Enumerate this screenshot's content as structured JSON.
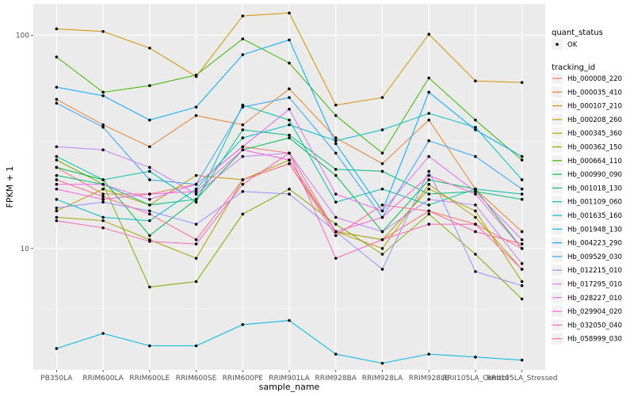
{
  "chart_data": {
    "type": "line",
    "xlabel": "sample_name",
    "ylabel": "FPKM + 1",
    "y_scale": "log",
    "ylim": [
      2.7,
      140
    ],
    "y_ticks": [
      10,
      100
    ],
    "grid": true,
    "legend_placement": "right",
    "categories": [
      "PB350LA",
      "RRIM600LA",
      "RRIM600LE",
      "RRIM600SE",
      "RRIM600PE",
      "RRIM901LA",
      "RRIM928BA",
      "RRIM928LA",
      "RRIM928LE",
      "RRII105LA_Control",
      "RRII105LA_Stressed"
    ],
    "point_legend": {
      "title": "quant_status",
      "items": [
        "OK"
      ]
    },
    "legend_title": "tracking_id",
    "series": [
      {
        "name": "Hb_000008_220",
        "color": "#F8766D",
        "values": [
          24,
          18,
          18,
          20,
          30,
          28,
          12,
          11,
          15,
          13,
          10
        ]
      },
      {
        "name": "Hb_000035_410",
        "color": "#EA8331",
        "values": [
          50,
          38,
          30,
          42,
          38,
          56,
          33,
          25,
          40,
          19,
          12
        ]
      },
      {
        "name": "Hb_000107_210",
        "color": "#D89000",
        "values": [
          107,
          104,
          87,
          64,
          123,
          127,
          47,
          51,
          101,
          61,
          60
        ]
      },
      {
        "name": "Hb_000208_260",
        "color": "#C09B00",
        "values": [
          15,
          19,
          16,
          22,
          21,
          26,
          12,
          10,
          20,
          14,
          8
        ]
      },
      {
        "name": "Hb_000345_360",
        "color": "#A3A500",
        "values": [
          14,
          13.5,
          11,
          9,
          21,
          25,
          12,
          11,
          19,
          15,
          7
        ]
      },
      {
        "name": "Hb_000362_150",
        "color": "#7CAE00",
        "values": [
          26,
          20,
          6.6,
          7,
          14.5,
          19,
          13,
          9.4,
          14.5,
          9.4,
          5.8
        ]
      },
      {
        "name": "Hb_000664_110",
        "color": "#39B600",
        "values": [
          79,
          54,
          58,
          65,
          96,
          74,
          42,
          28,
          63,
          40,
          26
        ]
      },
      {
        "name": "Hb_000990_090",
        "color": "#00BB4E",
        "values": [
          24,
          21,
          11.5,
          17,
          29,
          33,
          22,
          12,
          21,
          19,
          10
        ]
      },
      {
        "name": "Hb_001018_130",
        "color": "#00BF7D",
        "values": [
          22,
          20,
          16,
          17,
          36,
          34,
          23.5,
          23,
          18,
          18.5,
          17
        ]
      },
      {
        "name": "Hb_001109_060",
        "color": "#00C1A3",
        "values": [
          27,
          21,
          23,
          16.5,
          47,
          40,
          16.5,
          19,
          16,
          19,
          18
        ]
      },
      {
        "name": "Hb_001635_160",
        "color": "#00BFC4",
        "values": [
          17,
          14,
          13.5,
          19,
          33,
          38,
          32,
          36,
          43,
          37,
          21
        ]
      },
      {
        "name": "Hb_001948_130",
        "color": "#00B8E7",
        "values": [
          3.4,
          4,
          3.5,
          3.5,
          4.4,
          4.6,
          3.2,
          2.9,
          3.2,
          3.1,
          3
        ]
      },
      {
        "name": "Hb_004223_290",
        "color": "#00A9FF",
        "values": [
          57,
          52,
          40,
          46,
          81,
          95,
          31,
          15,
          54,
          36,
          27
        ]
      },
      {
        "name": "Hb_009529_030",
        "color": "#35A2FF",
        "values": [
          48,
          37,
          21,
          20,
          46,
          51,
          28,
          14,
          32,
          27,
          19
        ]
      },
      {
        "name": "Hb_012215_010",
        "color": "#9590FF",
        "values": [
          15.5,
          16.5,
          15,
          13,
          18.5,
          18,
          12,
          8,
          23,
          7.8,
          6.7
        ]
      },
      {
        "name": "Hb_017295_010",
        "color": "#C77CFF",
        "values": [
          30,
          29,
          24,
          18,
          27,
          28,
          14,
          12,
          17,
          16,
          8.5
        ]
      },
      {
        "name": "Hb_028227_010",
        "color": "#E76BF3",
        "values": [
          20,
          20,
          17,
          20,
          30,
          45,
          18,
          15,
          27,
          18.5,
          11
        ]
      },
      {
        "name": "Hb_029904_020",
        "color": "#FA62DB",
        "values": [
          19,
          17,
          18,
          18.5,
          29,
          26,
          12,
          14,
          22,
          18,
          10
        ]
      },
      {
        "name": "Hb_032050_040",
        "color": "#FF62BC",
        "values": [
          13.5,
          12.5,
          10.8,
          10.5,
          20,
          28,
          9,
          11,
          13,
          13,
          8
        ]
      },
      {
        "name": "Hb_058999_030",
        "color": "#FF6C91",
        "values": [
          21,
          17.5,
          14.5,
          11,
          21,
          25,
          11.5,
          16,
          15,
          12,
          10.5
        ]
      }
    ]
  }
}
